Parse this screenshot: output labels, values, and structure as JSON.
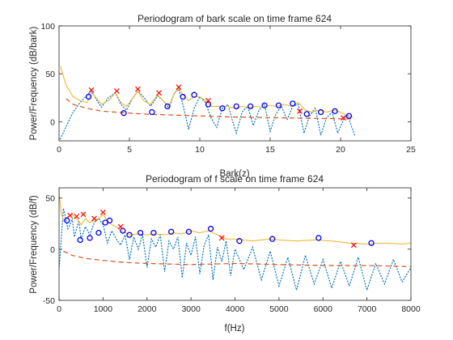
{
  "colors": {
    "spectrum": "#0072BD",
    "envelope": "#EDB120",
    "floor": "#D95319",
    "peak_marker": "#FF0000",
    "valley_marker": "#0000FF"
  },
  "chart_data": [
    {
      "type": "line",
      "title": "Periodogram of bark scale on time frame 624",
      "xlabel": "Bark(z)",
      "ylabel": "Power/Frequency (dB/bark)",
      "xlim": [
        0,
        25
      ],
      "ylim": [
        -20,
        100
      ],
      "xticks": [
        0,
        5,
        10,
        15,
        20,
        25
      ],
      "yticks": [
        0,
        50,
        100
      ],
      "grid": false,
      "series": [
        {
          "style": "dotted",
          "color": "#0072BD",
          "x": [
            0.1,
            0.5,
            1.0,
            1.5,
            2.0,
            2.3,
            2.7,
            3.0,
            3.5,
            4.0,
            4.4,
            4.8,
            5.2,
            5.6,
            6.0,
            6.5,
            7.0,
            7.4,
            7.8,
            8.2,
            8.5,
            8.8,
            9.2,
            9.6,
            10.0,
            10.4,
            10.8,
            11.2,
            11.6,
            12.0,
            12.3,
            12.6,
            13.0,
            13.4,
            13.8,
            14.2,
            14.6,
            15.0,
            15.4,
            15.8,
            16.2,
            16.6,
            17.0,
            17.4,
            17.8,
            18.2,
            18.6,
            19.0,
            19.4,
            19.8,
            20.2,
            20.5,
            20.8,
            21.0
          ],
          "y": [
            -18,
            -5,
            10,
            20,
            28,
            32,
            22,
            15,
            25,
            30,
            18,
            12,
            24,
            32,
            26,
            16,
            27,
            22,
            14,
            30,
            34,
            18,
            -8,
            14,
            26,
            20,
            4,
            -6,
            14,
            18,
            2,
            -12,
            10,
            16,
            -4,
            12,
            18,
            -10,
            8,
            16,
            2,
            16,
            18,
            -12,
            6,
            14,
            -14,
            4,
            10,
            -12,
            2,
            8,
            -6,
            -14
          ]
        },
        {
          "style": "solid",
          "color": "#EDB120",
          "x": [
            0.1,
            0.5,
            1.0,
            1.5,
            2.0,
            2.3,
            2.7,
            3.0,
            3.5,
            4.0,
            4.4,
            4.8,
            5.2,
            5.6,
            6.0,
            6.5,
            7.0,
            7.4,
            7.8,
            8.2,
            8.5,
            8.8,
            9.2,
            9.6,
            10.0,
            10.4,
            10.8,
            11.2,
            11.6,
            12.0,
            12.5,
            13.0,
            13.5,
            14.0,
            14.5,
            15.0,
            15.5,
            16.0,
            16.5,
            17.0,
            17.5,
            18.0,
            18.5,
            19.0,
            19.5,
            20.0,
            20.5,
            20.9
          ],
          "y": [
            58,
            38,
            26,
            22,
            20,
            30,
            24,
            18,
            22,
            30,
            20,
            16,
            24,
            32,
            22,
            18,
            28,
            22,
            16,
            30,
            35,
            28,
            22,
            26,
            26,
            22,
            16,
            16,
            16,
            16,
            14,
            16,
            15,
            16,
            15,
            17,
            16,
            18,
            16,
            20,
            12,
            10,
            12,
            10,
            12,
            10,
            6,
            5
          ]
        },
        {
          "style": "dashed",
          "color": "#D95319",
          "x": [
            0.5,
            1.0,
            2.0,
            3.0,
            4.0,
            5.0,
            6.0,
            8.0,
            10.0,
            12.0,
            14.0,
            16.0,
            18.0,
            20.0,
            21.0
          ],
          "y": [
            24,
            18,
            14,
            11,
            10,
            9,
            8,
            7,
            6,
            5,
            4.5,
            4,
            3.5,
            3,
            3
          ]
        }
      ],
      "peaks": {
        "marker": "x",
        "color": "#FF0000",
        "x": [
          2.3,
          4.1,
          5.6,
          7.1,
          8.5,
          10.6,
          17.1,
          20.2
        ],
        "y": [
          33,
          32,
          34,
          30,
          36,
          22,
          11,
          4
        ]
      },
      "valleys": {
        "marker": "o",
        "color": "#0000FF",
        "x": [
          2.1,
          4.6,
          6.6,
          7.7,
          8.8,
          9.6,
          10.6,
          11.6,
          12.6,
          13.6,
          14.6,
          15.6,
          16.6,
          17.6,
          18.6,
          19.6,
          20.6
        ],
        "y": [
          26,
          9,
          10,
          16,
          26,
          28,
          18,
          14,
          16,
          16,
          17,
          17,
          19,
          8,
          10,
          11,
          6
        ]
      }
    },
    {
      "type": "line",
      "title": "Periodogram of f scale on time frame 624",
      "xlabel": "f(Hz)",
      "ylabel": "Power/Frequency (dB/f)",
      "xlim": [
        0,
        8000
      ],
      "ylim": [
        -50,
        60
      ],
      "xticks": [
        0,
        1000,
        2000,
        3000,
        4000,
        5000,
        6000,
        7000,
        8000
      ],
      "yticks": [
        -50,
        0,
        50
      ],
      "grid": false,
      "series": [
        {
          "style": "dotted",
          "color": "#0072BD",
          "x": [
            0,
            50,
            100,
            150,
            200,
            250,
            300,
            350,
            400,
            450,
            500,
            600,
            700,
            800,
            900,
            1000,
            1100,
            1200,
            1300,
            1400,
            1500,
            1600,
            1700,
            1800,
            1900,
            2000,
            2100,
            2200,
            2300,
            2400,
            2500,
            2600,
            2700,
            2800,
            2900,
            3000,
            3100,
            3200,
            3300,
            3400,
            3500,
            3600,
            3700,
            3800,
            3900,
            4000,
            4200,
            4400,
            4600,
            4800,
            5000,
            5200,
            5400,
            5600,
            5800,
            6000,
            6200,
            6400,
            6600,
            6800,
            7000,
            7200,
            7400,
            7600,
            7800,
            8000
          ],
          "y": [
            -20,
            10,
            40,
            30,
            20,
            24,
            30,
            12,
            20,
            28,
            10,
            22,
            14,
            26,
            30,
            24,
            6,
            18,
            10,
            4,
            14,
            -10,
            12,
            0,
            14,
            -18,
            10,
            2,
            14,
            -22,
            8,
            0,
            12,
            -28,
            6,
            -6,
            12,
            -24,
            4,
            14,
            -30,
            2,
            -12,
            8,
            -26,
            0,
            -20,
            2,
            -30,
            -2,
            -36,
            -8,
            -40,
            -6,
            -34,
            -10,
            -38,
            -12,
            -36,
            -8,
            -40,
            -14,
            -34,
            -10,
            -32,
            -18
          ]
        },
        {
          "style": "solid",
          "color": "#EDB120",
          "x": [
            0,
            50,
            100,
            150,
            200,
            300,
            400,
            500,
            600,
            700,
            800,
            900,
            1000,
            1100,
            1200,
            1300,
            1400,
            1500,
            1600,
            1800,
            2000,
            2200,
            2400,
            2600,
            2800,
            3000,
            3200,
            3400,
            3600,
            3800,
            4000,
            4200,
            4400,
            4600,
            4800,
            5000,
            5400,
            5800,
            6200,
            6600,
            7000,
            7400,
            7800,
            8000
          ],
          "y": [
            55,
            36,
            28,
            30,
            32,
            34,
            30,
            24,
            30,
            26,
            28,
            30,
            34,
            28,
            24,
            22,
            18,
            16,
            14,
            15,
            14,
            15,
            14,
            16,
            15,
            18,
            16,
            18,
            14,
            10,
            10,
            9,
            8,
            9,
            10,
            9,
            8,
            9,
            8,
            6,
            5,
            6,
            5,
            6
          ]
        },
        {
          "style": "dashed",
          "color": "#D95319",
          "x": [
            100,
            300,
            600,
            1000,
            1500,
            2000,
            3000,
            4000,
            5000,
            6000,
            7000,
            8000
          ],
          "y": [
            -2,
            -6,
            -9,
            -11,
            -13,
            -14,
            -15,
            -14,
            -15,
            -16,
            -16,
            -17
          ]
        }
      ],
      "peaks": {
        "marker": "x",
        "color": "#FF0000",
        "x": [
          250,
          400,
          550,
          800,
          1000,
          1400,
          3700,
          6700
        ],
        "y": [
          33,
          32,
          34,
          30,
          36,
          22,
          11,
          4
        ]
      },
      "valleys": {
        "marker": "o",
        "color": "#0000FF",
        "x": [
          180,
          480,
          700,
          900,
          1050,
          1150,
          1450,
          1600,
          1850,
          2150,
          2550,
          2950,
          3450,
          4100,
          4850,
          5900,
          7100
        ],
        "y": [
          28,
          9,
          11,
          16,
          26,
          28,
          18,
          14,
          16,
          16,
          17,
          17,
          20,
          8,
          10,
          11,
          6
        ]
      }
    }
  ]
}
